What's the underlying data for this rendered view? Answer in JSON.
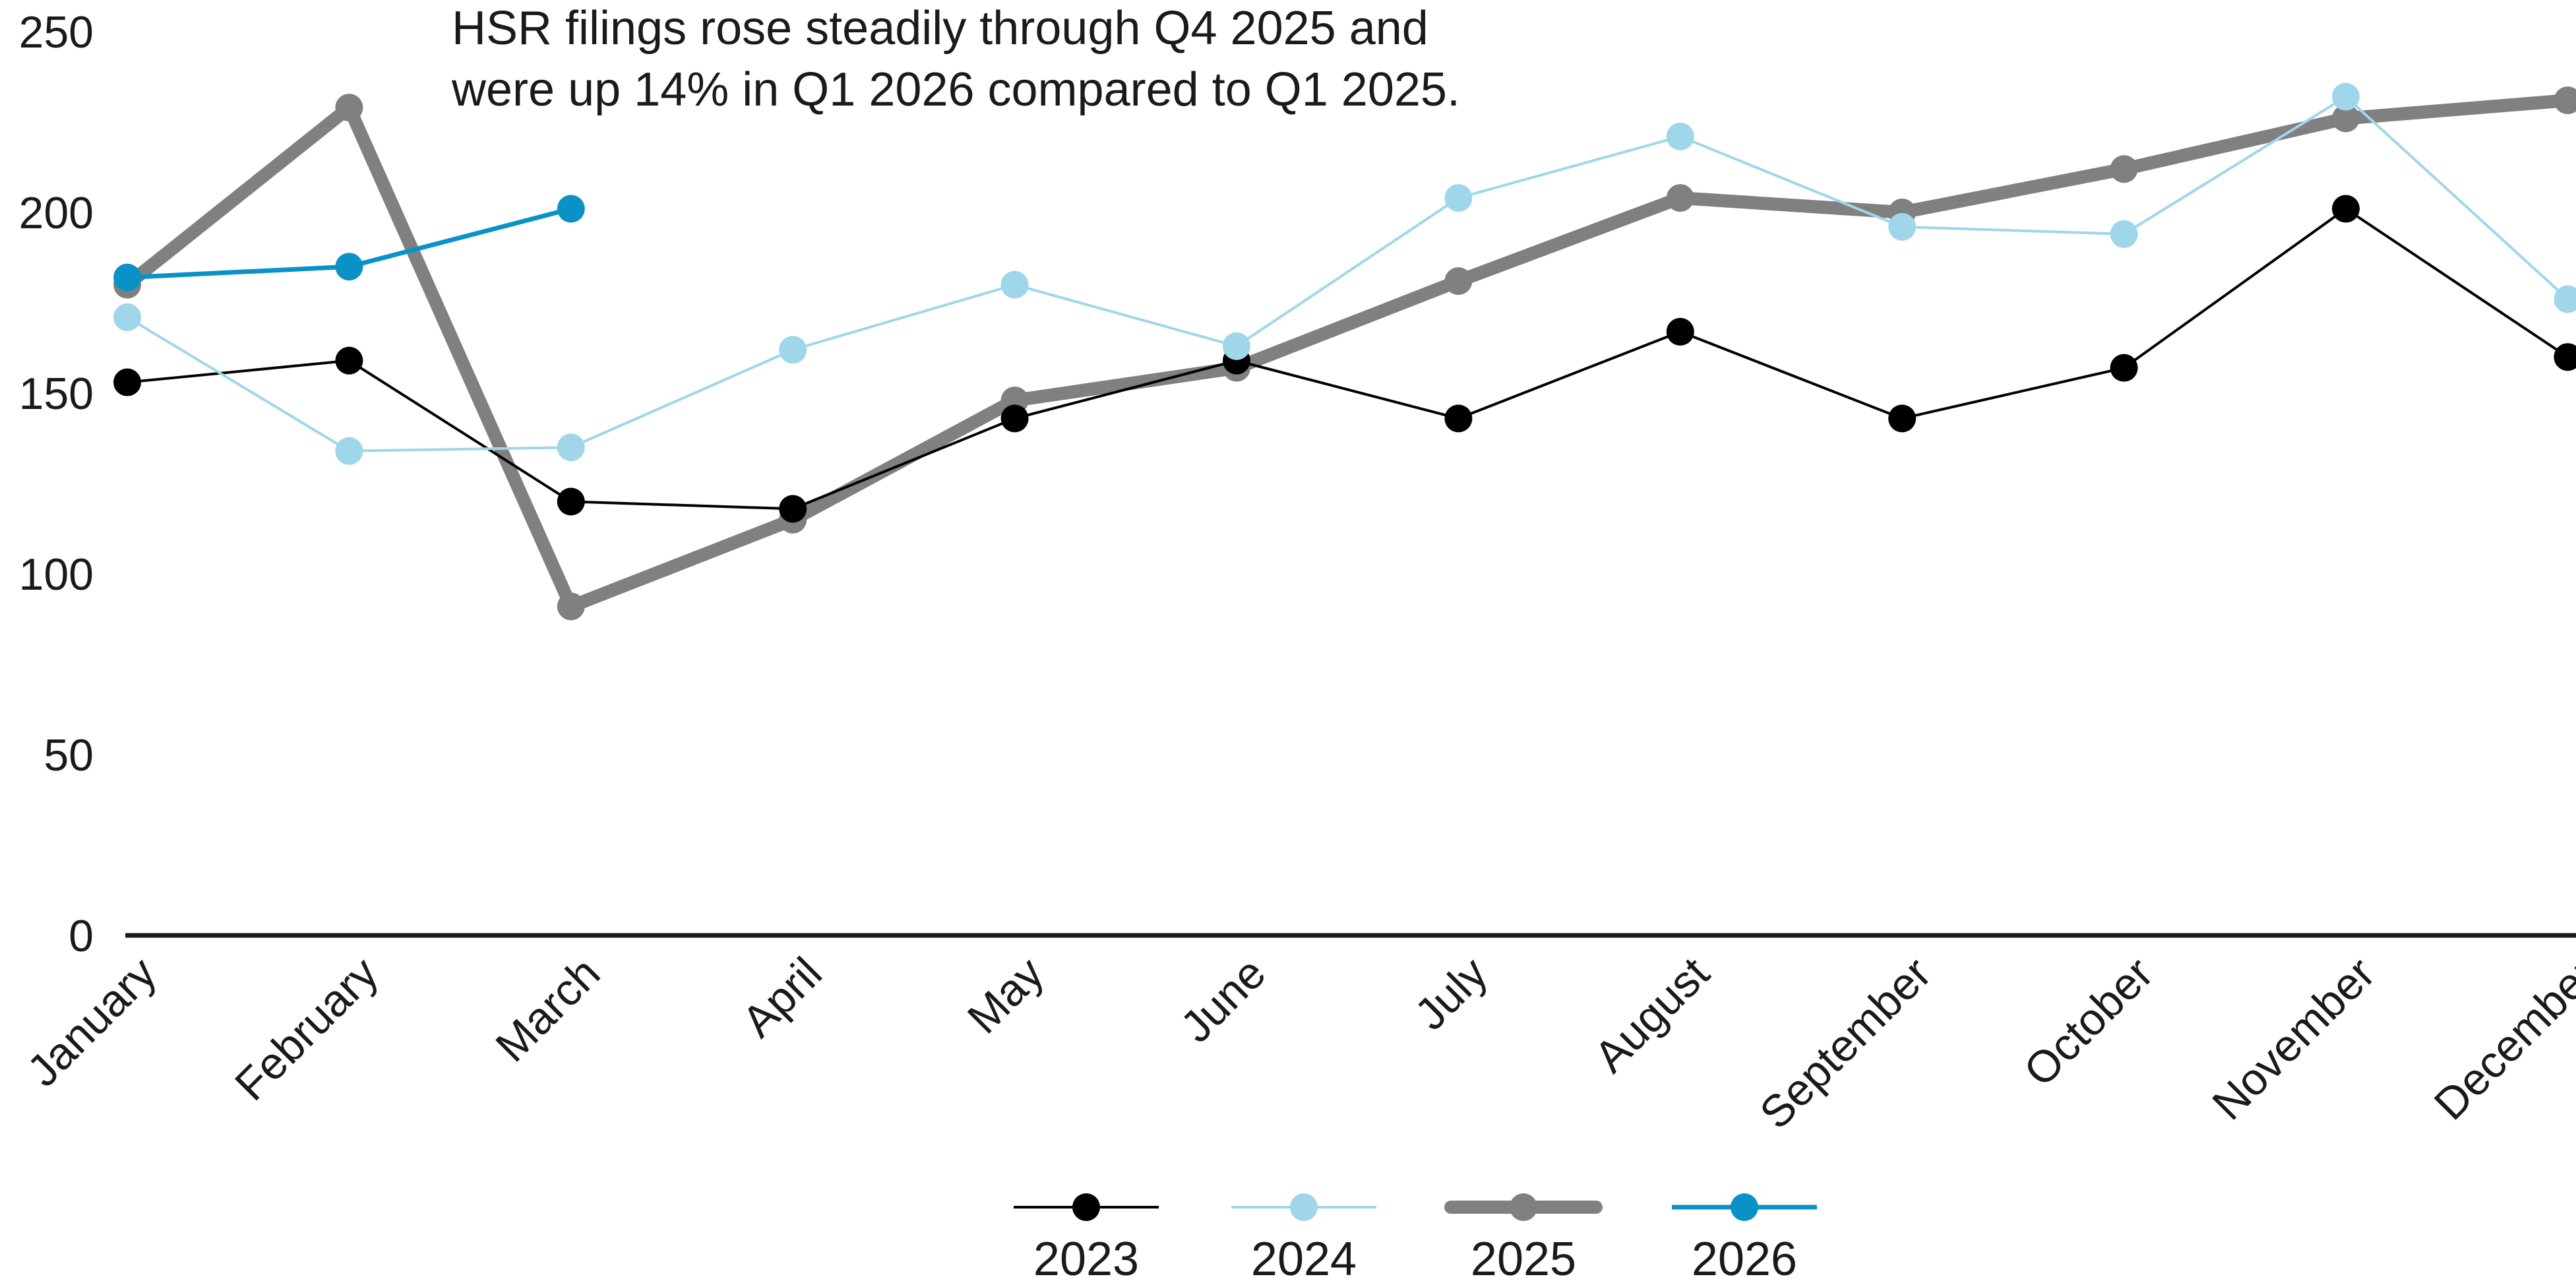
{
  "chart_data": {
    "type": "line",
    "title": "",
    "xlabel": "",
    "ylabel": "",
    "categories": [
      "January",
      "February",
      "March",
      "April",
      "May",
      "June",
      "July",
      "August",
      "September",
      "October",
      "November",
      "December"
    ],
    "ylim": [
      0,
      250
    ],
    "yticks": [
      0,
      50,
      100,
      150,
      200,
      250
    ],
    "grid": false,
    "legend_position": "bottom",
    "annotation": {
      "lines": [
        "HSR filings rose steadily through Q4 2025 and",
        "were up 14% in Q1 2026 compared to Q1 2025."
      ]
    },
    "series": [
      {
        "name": "2023",
        "color": "#000000",
        "line_weight": "thin",
        "values": [
          153,
          159,
          120,
          118,
          143,
          159,
          143,
          167,
          143,
          157,
          201,
          160
        ]
      },
      {
        "name": "2024",
        "color": "#9fd6ea",
        "line_weight": "thin",
        "values": [
          171,
          134,
          135,
          162,
          180,
          163,
          204,
          221,
          196,
          194,
          232,
          176
        ]
      },
      {
        "name": "2025",
        "color": "#808080",
        "line_weight": "thick",
        "values": [
          180,
          229,
          91,
          115,
          148,
          157,
          181,
          204,
          200,
          212,
          226,
          231
        ]
      },
      {
        "name": "2026",
        "color": "#0a92c7",
        "line_weight": "medium",
        "values": [
          182,
          185,
          201,
          null,
          null,
          null,
          null,
          null,
          null,
          null,
          null,
          null
        ]
      }
    ]
  }
}
